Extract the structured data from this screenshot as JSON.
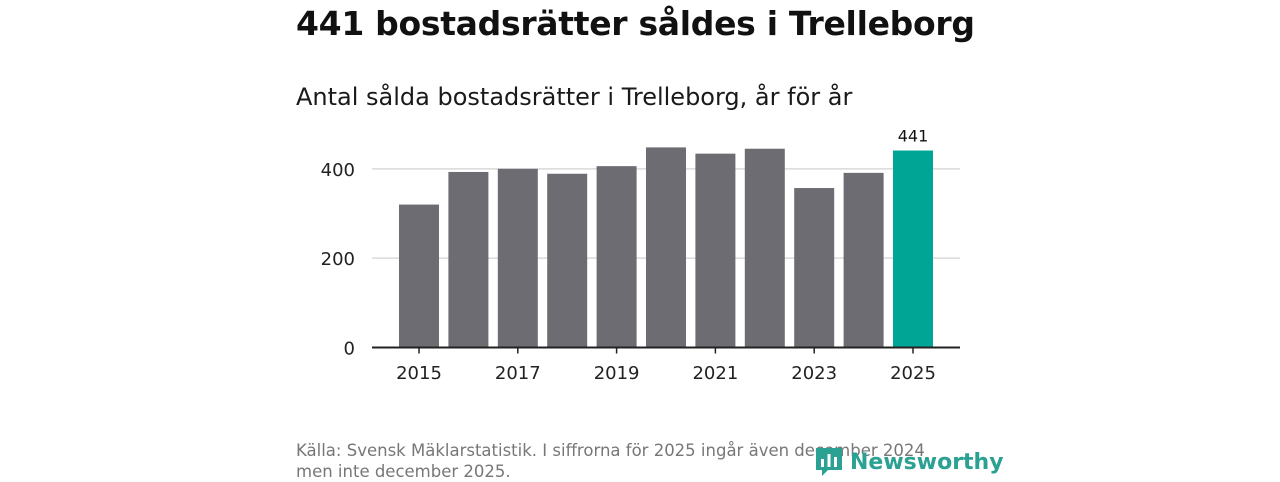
{
  "title": "441 bostadsrätter såldes i Trelleborg",
  "subtitle": "Antal sålda bostadsrätter i Trelleborg, år för år",
  "footer": "Källa: Svensk Mäklarstatistik. I siffrorna för 2025 ingår även december 2024 men inte december 2025.",
  "logo": {
    "text": "Newsworthy",
    "color": "#2aa193"
  },
  "colors": {
    "bar": "#6d6c72",
    "highlight": "#00a596",
    "grid": "#d9d9d9",
    "axis": "#222222",
    "label": "#222222"
  },
  "chart_data": {
    "type": "bar",
    "title": "Antal sålda bostadsrätter i Trelleborg, år för år",
    "xlabel": "",
    "ylabel": "",
    "categories": [
      2015,
      2016,
      2017,
      2018,
      2019,
      2020,
      2021,
      2022,
      2023,
      2024,
      2025
    ],
    "values": [
      320,
      393,
      400,
      389,
      406,
      448,
      434,
      445,
      357,
      391,
      441
    ],
    "highlight_index": 10,
    "data_labels": [
      {
        "index": 10,
        "text": "441"
      }
    ],
    "x_tick_labels": [
      "2015",
      "2017",
      "2019",
      "2021",
      "2023",
      "2025"
    ],
    "y_ticks": [
      0,
      200,
      400
    ],
    "ylim": [
      0,
      450
    ],
    "grid": true,
    "legend": "none"
  }
}
